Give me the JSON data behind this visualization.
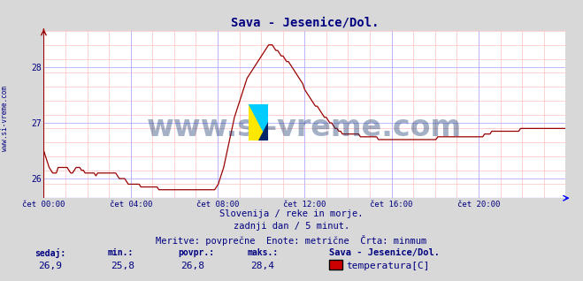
{
  "title": "Sava - Jesenice/Dol.",
  "title_color": "#000080",
  "title_fontsize": 10,
  "bg_color": "#d8d8d8",
  "plot_bg_color": "#ffffff",
  "grid_color_major": "#b0b0ff",
  "grid_color_minor": "#ffb0b0",
  "line_color": "#990000",
  "line_width": 0.9,
  "ylim": [
    25.65,
    28.65
  ],
  "ylabel_ticks": [
    26,
    27,
    28
  ],
  "xlabel_ticks": [
    0,
    4,
    8,
    12,
    16,
    20
  ],
  "xlabel_labels": [
    "čet 00:00",
    "čet 04:00",
    "čet 08:00",
    "čet 12:00",
    "čet 16:00",
    "čet 20:00"
  ],
  "xlim": [
    0,
    24
  ],
  "watermark": "www.si-vreme.com",
  "watermark_color": "#1a3a6e",
  "watermark_alpha": 0.4,
  "watermark_fontsize": 24,
  "footer_line1": "Slovenija / reke in morje.",
  "footer_line2": "zadnji dan / 5 minut.",
  "footer_line3": "Meritve: povprečne  Enote: metrične  Črta: minmum",
  "footer_color": "#000080",
  "footer_fontsize": 7.5,
  "stats_labels": [
    "sedaj:",
    "min.:",
    "povpr.:",
    "maks.:"
  ],
  "stats_values": [
    "26,9",
    "25,8",
    "26,8",
    "28,4"
  ],
  "stats_color": "#000080",
  "stats_label_fontsize": 7,
  "stats_value_fontsize": 8,
  "legend_title": "Sava - Jesenice/Dol.",
  "legend_label": "temperatura[C]",
  "legend_color": "#cc0000",
  "side_label": "www.si-vreme.com",
  "side_label_color": "#000080",
  "side_label_fontsize": 5.5,
  "y_data": [
    26.5,
    26.4,
    26.3,
    26.2,
    26.15,
    26.1,
    26.1,
    26.1,
    26.2,
    26.2,
    26.2,
    26.2,
    26.2,
    26.2,
    26.15,
    26.1,
    26.1,
    26.15,
    26.2,
    26.2,
    26.2,
    26.15,
    26.15,
    26.1,
    26.1,
    26.1,
    26.1,
    26.1,
    26.1,
    26.05,
    26.1,
    26.1,
    26.1,
    26.1,
    26.1,
    26.1,
    26.1,
    26.1,
    26.1,
    26.1,
    26.1,
    26.05,
    26.0,
    26.0,
    26.0,
    26.0,
    25.95,
    25.9,
    25.9,
    25.9,
    25.9,
    25.9,
    25.9,
    25.9,
    25.85,
    25.85,
    25.85,
    25.85,
    25.85,
    25.85,
    25.85,
    25.85,
    25.85,
    25.85,
    25.8,
    25.8,
    25.8,
    25.8,
    25.8,
    25.8,
    25.8,
    25.8,
    25.8,
    25.8,
    25.8,
    25.8,
    25.8,
    25.8,
    25.8,
    25.8,
    25.8,
    25.8,
    25.8,
    25.8,
    25.8,
    25.8,
    25.8,
    25.8,
    25.8,
    25.8,
    25.8,
    25.8,
    25.8,
    25.8,
    25.8,
    25.8,
    25.85,
    25.9,
    26.0,
    26.1,
    26.2,
    26.35,
    26.5,
    26.65,
    26.8,
    26.95,
    27.1,
    27.2,
    27.3,
    27.4,
    27.5,
    27.6,
    27.7,
    27.8,
    27.85,
    27.9,
    27.95,
    28.0,
    28.05,
    28.1,
    28.15,
    28.2,
    28.25,
    28.3,
    28.35,
    28.4,
    28.4,
    28.4,
    28.35,
    28.3,
    28.3,
    28.25,
    28.2,
    28.2,
    28.15,
    28.1,
    28.1,
    28.05,
    28.0,
    27.95,
    27.9,
    27.85,
    27.8,
    27.75,
    27.7,
    27.6,
    27.55,
    27.5,
    27.45,
    27.4,
    27.35,
    27.3,
    27.3,
    27.25,
    27.2,
    27.15,
    27.1,
    27.1,
    27.05,
    27.0,
    27.0,
    26.95,
    26.9,
    26.9,
    26.85,
    26.85,
    26.8,
    26.8,
    26.8,
    26.8,
    26.8,
    26.8,
    26.8,
    26.8,
    26.8,
    26.8,
    26.75,
    26.75,
    26.75,
    26.75,
    26.75,
    26.75,
    26.75,
    26.75,
    26.75,
    26.75,
    26.7,
    26.7,
    26.7,
    26.7,
    26.7,
    26.7,
    26.7,
    26.7,
    26.7,
    26.7,
    26.7,
    26.7,
    26.7,
    26.7,
    26.7,
    26.7,
    26.7,
    26.7,
    26.7,
    26.7,
    26.7,
    26.7,
    26.7,
    26.7,
    26.7,
    26.7,
    26.7,
    26.7,
    26.7,
    26.7,
    26.7,
    26.7,
    26.7,
    26.75,
    26.75,
    26.75,
    26.75,
    26.75,
    26.75,
    26.75,
    26.75,
    26.75,
    26.75,
    26.75,
    26.75,
    26.75,
    26.75,
    26.75,
    26.75,
    26.75,
    26.75,
    26.75,
    26.75,
    26.75,
    26.75,
    26.75,
    26.75,
    26.75,
    26.75,
    26.8,
    26.8,
    26.8,
    26.8,
    26.85,
    26.85,
    26.85,
    26.85,
    26.85,
    26.85,
    26.85,
    26.85,
    26.85,
    26.85,
    26.85,
    26.85,
    26.85,
    26.85,
    26.85,
    26.85,
    26.9,
    26.9,
    26.9,
    26.9,
    26.9,
    26.9,
    26.9,
    26.9,
    26.9,
    26.9,
    26.9,
    26.9,
    26.9,
    26.9,
    26.9,
    26.9,
    26.9,
    26.9,
    26.9,
    26.9,
    26.9,
    26.9,
    26.9,
    26.9,
    26.9,
    26.9
  ]
}
